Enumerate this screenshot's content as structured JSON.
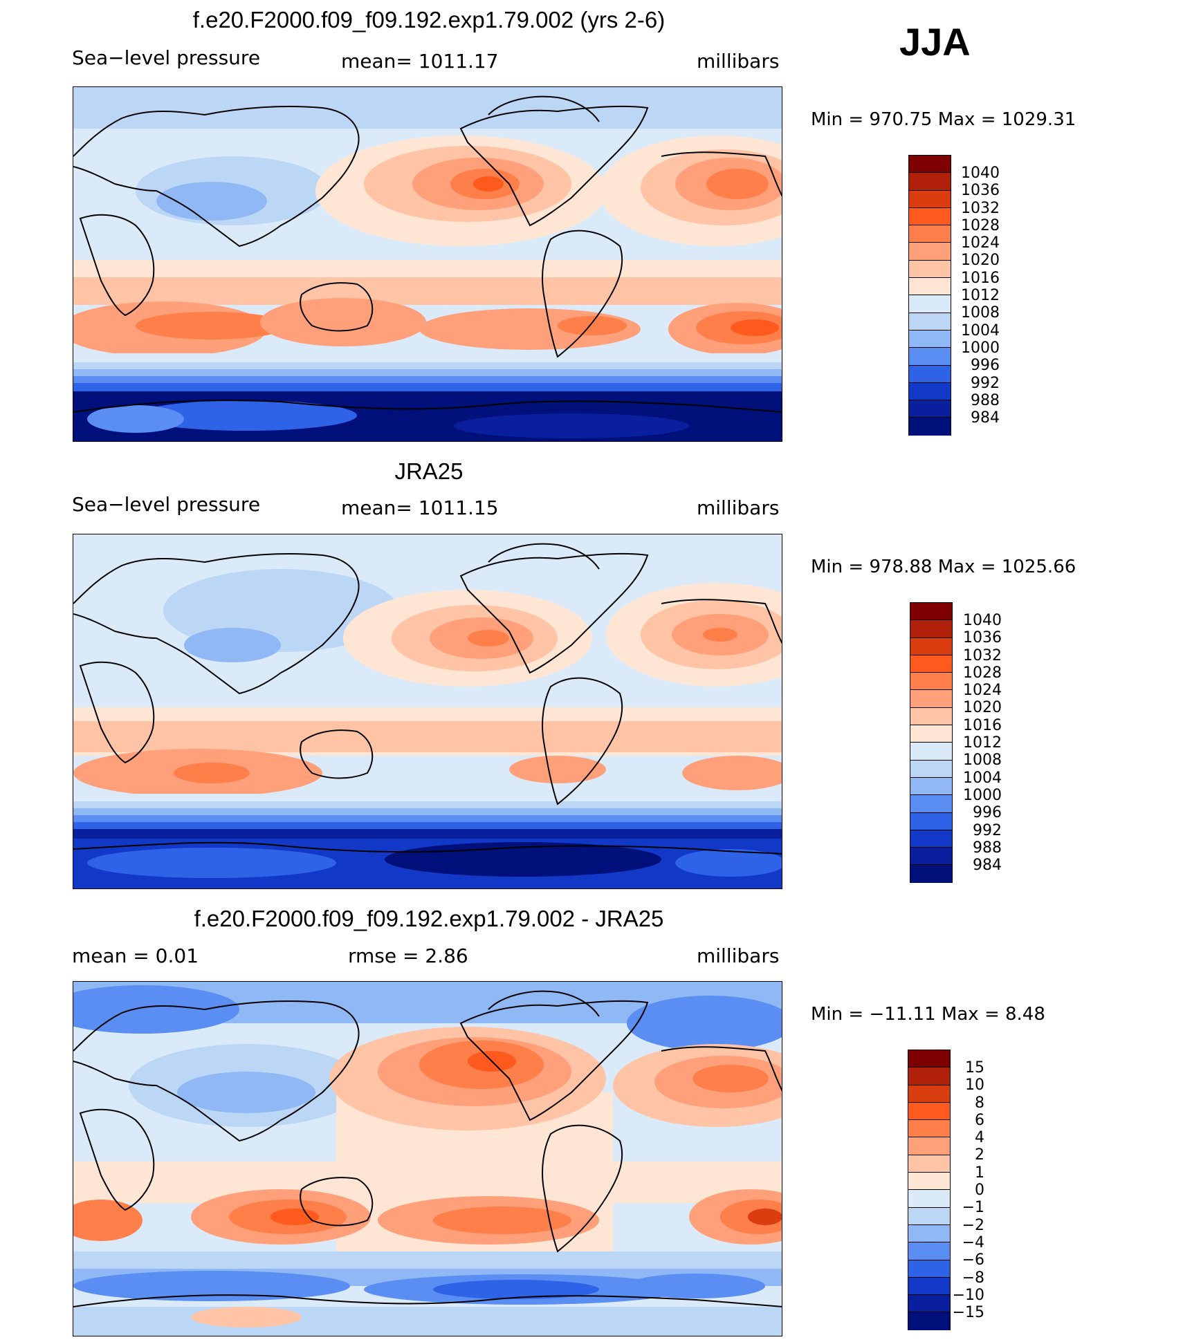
{
  "season": "JJA",
  "panels": [
    {
      "title": "f.e20.F2000.f09_f09.192.exp1.79.002 (yrs 2-6)",
      "left_label": "Sea−level  pressure",
      "mid_label": "mean=  1011.17",
      "units": "millibars",
      "minmax": "Min  =  970.75  Max  =  1029.31",
      "colorbar": {
        "labels": [
          "1040",
          "1036",
          "1032",
          "1028",
          "1024",
          "1020",
          "1016",
          "1012",
          "1008",
          "1004",
          "1000",
          "996",
          "992",
          "988",
          "984"
        ],
        "colors": [
          "#7f0000",
          "#b0200a",
          "#d93d10",
          "#ff5a1e",
          "#ff7f4a",
          "#ffa07a",
          "#ffc4a6",
          "#ffe6d4",
          "#dbeaf8",
          "#bcd6f6",
          "#8fb8f5",
          "#5a8ef2",
          "#2e63e8",
          "#1238c8",
          "#0a1f9e",
          "#00107a"
        ]
      },
      "map": {
        "highs": [
          {
            "name": "north-pacific-high",
            "value": 1028
          },
          {
            "name": "azores-high",
            "value": 1028
          },
          {
            "name": "south-indian-high",
            "value": 1024
          },
          {
            "name": "australian-high",
            "value": 1024
          },
          {
            "name": "south-pacific-high",
            "value": 1024
          },
          {
            "name": "south-atlantic-high",
            "value": 1028
          }
        ],
        "southern_ocean_low": 984
      }
    },
    {
      "title": "JRA25",
      "left_label": "Sea−level  pressure",
      "mid_label": "mean=  1011.15",
      "units": "millibars",
      "minmax": "Min  =  978.88  Max  =  1025.66",
      "colorbar": {
        "labels": [
          "1040",
          "1036",
          "1032",
          "1028",
          "1024",
          "1020",
          "1016",
          "1012",
          "1008",
          "1004",
          "1000",
          "996",
          "992",
          "988",
          "984"
        ],
        "colors": [
          "#7f0000",
          "#b0200a",
          "#d93d10",
          "#ff5a1e",
          "#ff7f4a",
          "#ffa07a",
          "#ffc4a6",
          "#ffe6d4",
          "#dbeaf8",
          "#bcd6f6",
          "#8fb8f5",
          "#5a8ef2",
          "#2e63e8",
          "#1238c8",
          "#0a1f9e",
          "#00107a"
        ]
      },
      "map": {
        "highs": [
          {
            "name": "north-pacific-high",
            "value": 1024
          },
          {
            "name": "azores-high",
            "value": 1024
          },
          {
            "name": "south-indian-high",
            "value": 1024
          },
          {
            "name": "australian-high",
            "value": 1020
          },
          {
            "name": "south-pacific-high",
            "value": 1020
          },
          {
            "name": "south-atlantic-high",
            "value": 1020
          }
        ],
        "southern_ocean_low": 984
      }
    },
    {
      "title": "f.e20.F2000.f09_f09.192.exp1.79.002 - JRA25",
      "left_label": "mean  =      0.01",
      "mid_label": "rmse  =      2.86",
      "units": "millibars",
      "minmax": "Min  =  −11.11  Max  =      8.48",
      "colorbar": {
        "labels": [
          "15",
          "10",
          "8",
          "6",
          "4",
          "2",
          "1",
          "0",
          "−1",
          "−2",
          "−4",
          "−6",
          "−8",
          "−10",
          "−15"
        ],
        "colors": [
          "#7f0000",
          "#b0200a",
          "#d93d10",
          "#ff5a1e",
          "#ff7f4a",
          "#ffa07a",
          "#ffc4a6",
          "#ffe6d4",
          "#dbeaf8",
          "#bcd6f6",
          "#8fb8f5",
          "#5a8ef2",
          "#2e63e8",
          "#1238c8",
          "#0a1f9e",
          "#00107a"
        ]
      },
      "map": {
        "highs": [
          {
            "name": "north-pacific-diff",
            "value": 6
          },
          {
            "name": "atlantic-diff",
            "value": 4
          },
          {
            "name": "south-indian-diff",
            "value": 6
          },
          {
            "name": "south-pacific-diff",
            "value": 4
          },
          {
            "name": "south-atlantic-diff",
            "value": 8
          }
        ],
        "southern_ocean_low": -8
      }
    }
  ]
}
